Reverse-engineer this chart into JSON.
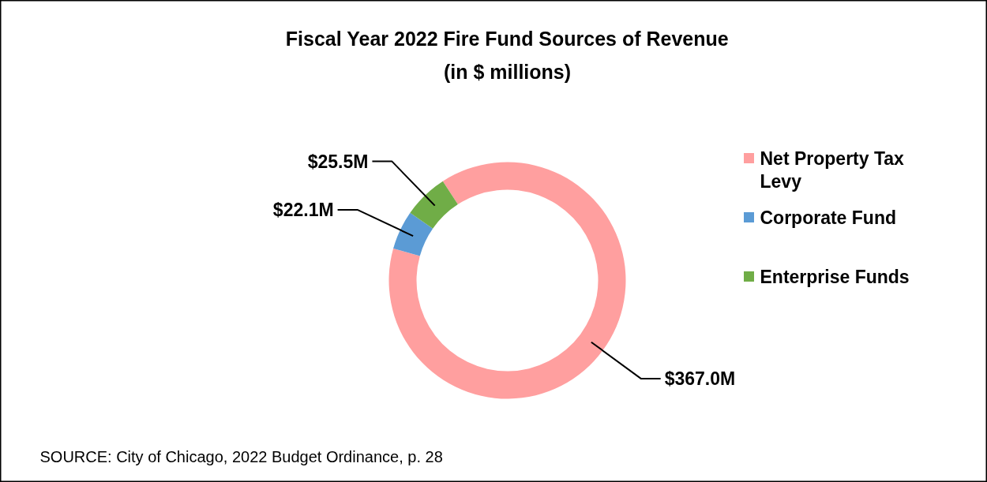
{
  "chart_data": {
    "type": "donut",
    "title": "Fiscal Year 2022 Fire Fund Sources of Revenue",
    "subtitle": "(in $ millions)",
    "categories": [
      "Net Property Tax Levy",
      "Corporate Fund",
      "Enterprise Funds"
    ],
    "values": [
      367.0,
      22.1,
      25.5
    ],
    "colors": [
      "#ff9f9f",
      "#5b9bd5",
      "#70ad47"
    ],
    "value_labels": [
      "$367.0M",
      "$22.1M",
      "$25.5M"
    ],
    "legend": "right",
    "annotations": [
      "SOURCE: City of Chicago, 2022 Budget Ordinance, p. 28"
    ]
  }
}
